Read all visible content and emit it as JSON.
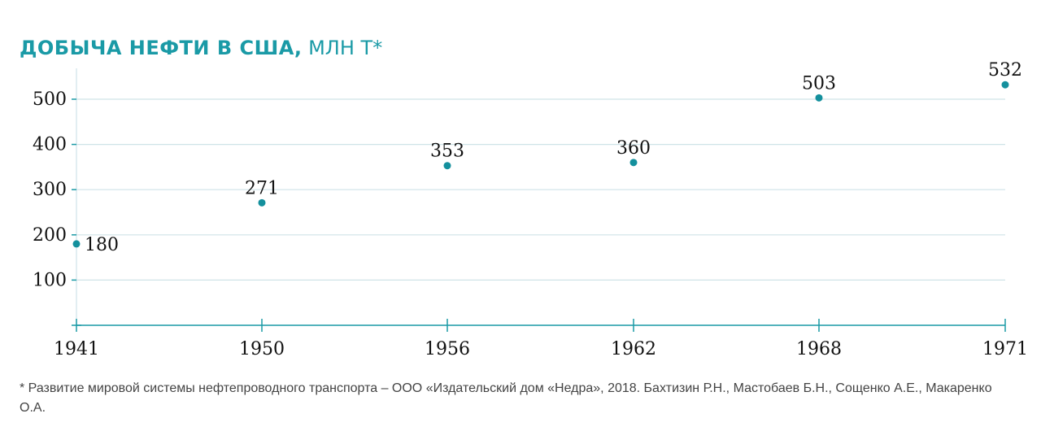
{
  "title": {
    "main": "ДОБЫЧА НЕФТИ В США,",
    "unit": " МЛН Т*"
  },
  "footnote": "* Развитие мировой системы нефтепроводного транспорта – ООО «Издательский дом «Недра», 2018. Бахтизин Р.Н., Мастобаев Б.Н., Сощенко А.Е., Макаренко О.А.",
  "colors": {
    "accent": "#1a9aa6",
    "grid": "#cfe3e8",
    "point": "#14909d"
  },
  "chart_data": {
    "type": "scatter",
    "title": "ДОБЫЧА НЕФТИ В США, МЛН Т*",
    "xlabel": "",
    "ylabel": "",
    "x": [
      "1941",
      "1950",
      "1956",
      "1962",
      "1968",
      "1971"
    ],
    "series": [
      {
        "values": [
          180,
          271,
          353,
          360,
          503,
          532
        ]
      }
    ],
    "ylim": [
      0,
      550
    ],
    "yticks": [
      "100",
      "200",
      "300",
      "400",
      "500"
    ],
    "grid": true
  }
}
